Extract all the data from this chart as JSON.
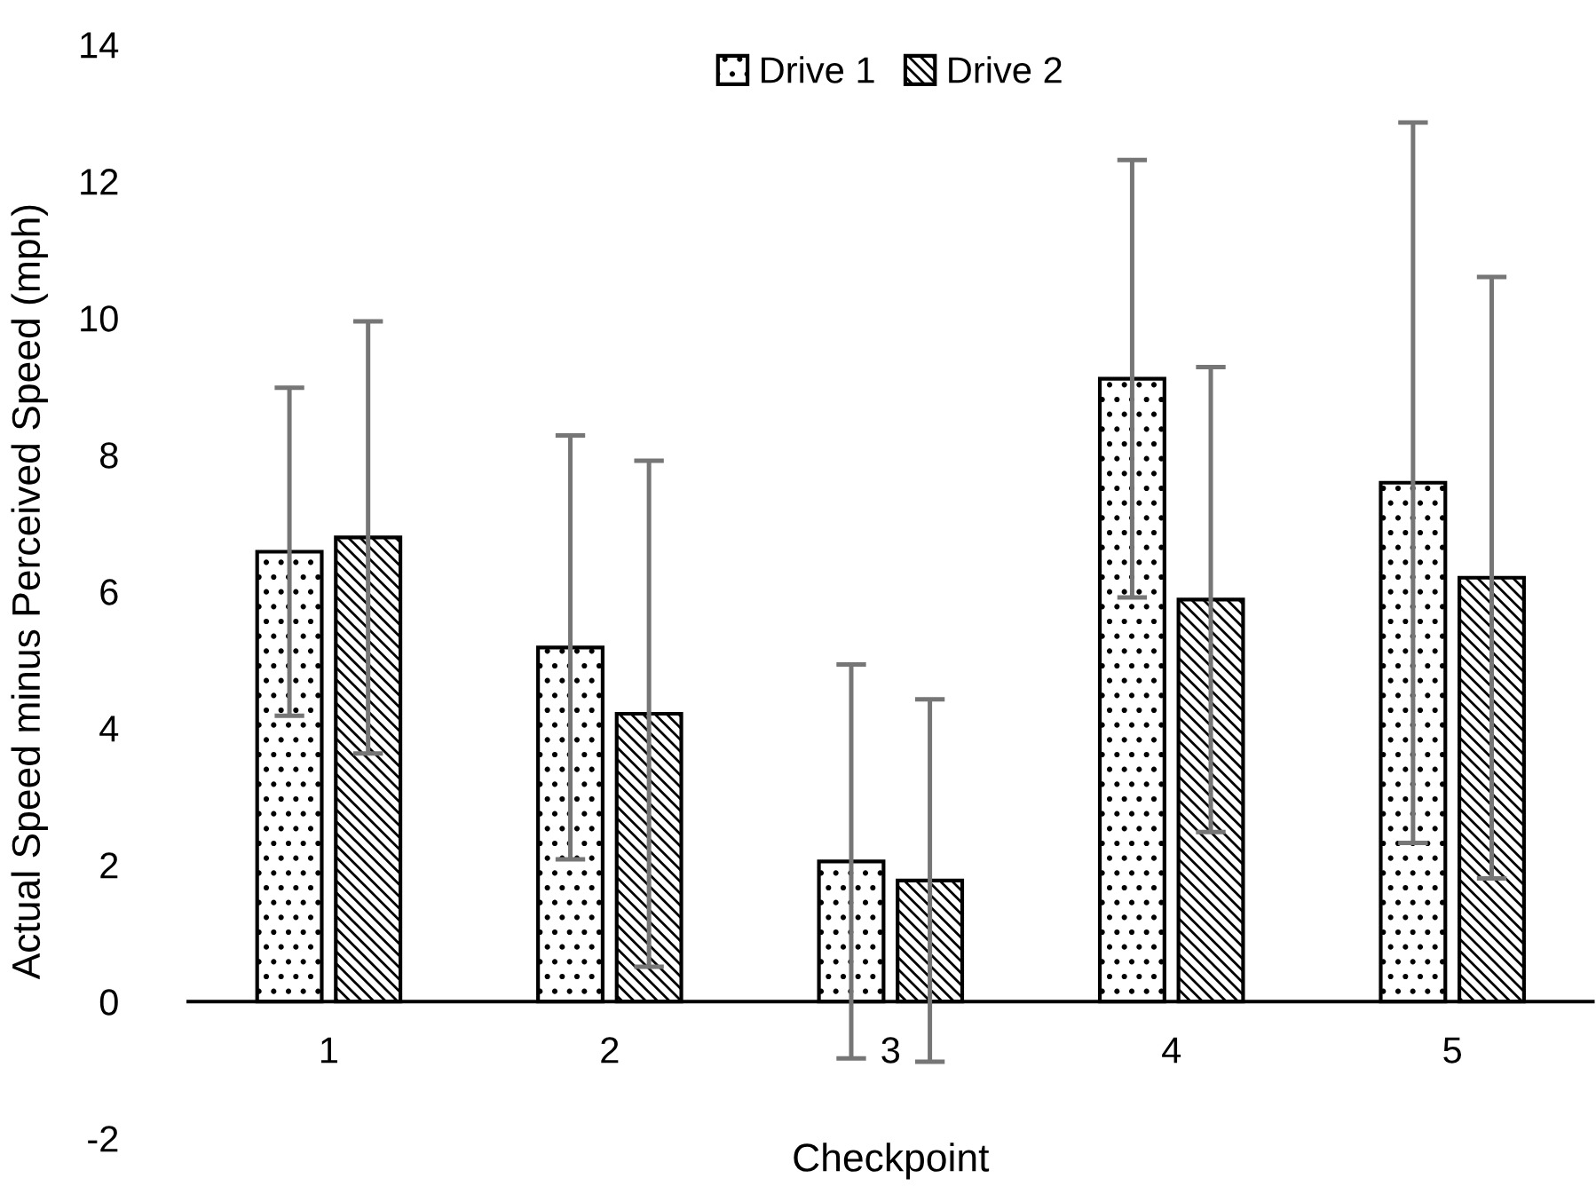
{
  "chart_data": {
    "type": "bar",
    "xlabel": "Checkpoint",
    "ylabel": "Actual Speed minus Perceived Speed (mph)",
    "categories": [
      "1",
      "2",
      "3",
      "4",
      "5"
    ],
    "series": [
      {
        "name": "Drive 1",
        "color": "#000000",
        "values": [
          6.58,
          5.18,
          2.05,
          9.11,
          7.59
        ],
        "errors": [
          2.4,
          3.1,
          2.88,
          3.2,
          5.27
        ]
      },
      {
        "name": "Drive 2",
        "color": "#000000",
        "values": [
          6.79,
          4.21,
          1.77,
          5.88,
          6.2
        ],
        "errors": [
          3.16,
          3.7,
          2.65,
          3.4,
          4.4
        ]
      }
    ],
    "ylim": [
      -2,
      14
    ],
    "yticks": [
      -2,
      0,
      2,
      4,
      6,
      8,
      10,
      12,
      14
    ],
    "legend": "top",
    "grid": false
  }
}
